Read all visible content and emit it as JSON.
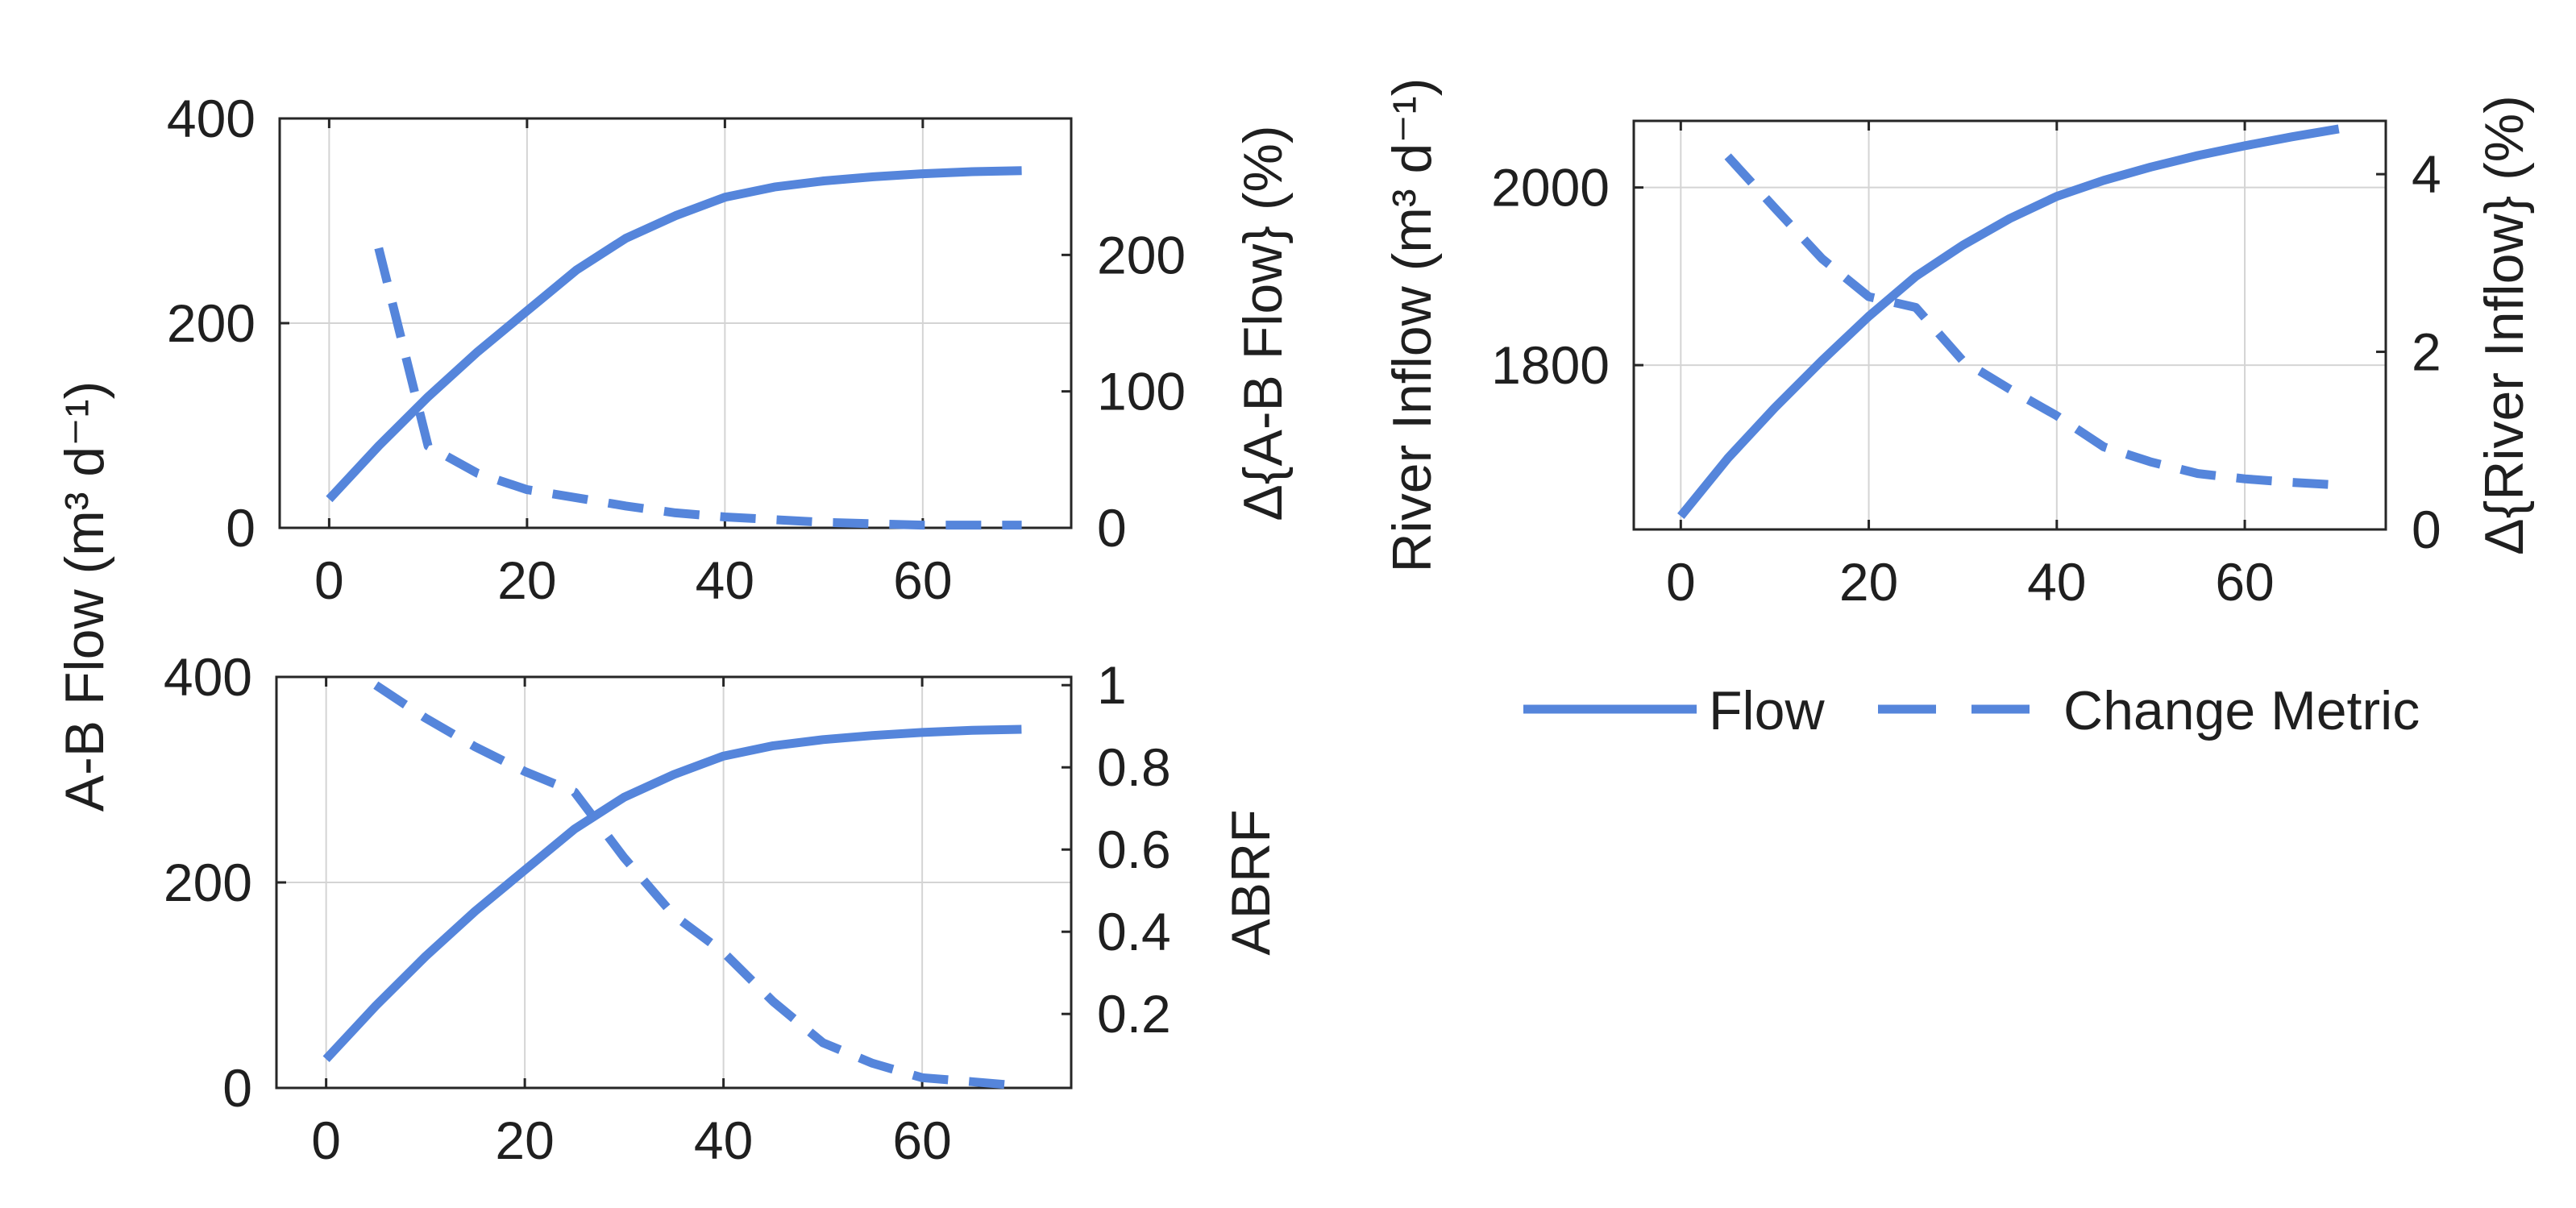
{
  "colors": {
    "series": "#5585db",
    "axis": "#262626",
    "grid": "#d4d4d4",
    "text": "#1f1f1f"
  },
  "legend": {
    "flow": "Flow",
    "change": "Change Metric"
  },
  "shared_ylabel": "A-B Flow (m³ d⁻¹)",
  "chart_data": [
    {
      "id": "ab",
      "type": "line",
      "title": "",
      "xlim": [
        -5,
        75
      ],
      "xticks": [
        0,
        20,
        40,
        60
      ],
      "ylabel": "A-B Flow (m³ d⁻¹)",
      "ylim": [
        0,
        400
      ],
      "yticks": [
        0,
        200,
        400
      ],
      "y2label": "Δ{A-B Flow} (%)",
      "y2lim": [
        0,
        300
      ],
      "y2ticks": [
        0,
        100,
        200
      ],
      "series": [
        {
          "name": "Flow",
          "axis": "left",
          "style": "solid",
          "x": [
            0,
            5,
            10,
            15,
            20,
            25,
            30,
            35,
            40,
            45,
            50,
            55,
            60,
            65,
            70
          ],
          "y": [
            28,
            80,
            128,
            172,
            212,
            252,
            283,
            305,
            323,
            333,
            339,
            343,
            346,
            348,
            349
          ]
        },
        {
          "name": "Change Metric",
          "axis": "right",
          "style": "dashed",
          "x": [
            5,
            10,
            15,
            20,
            25,
            30,
            35,
            40,
            45,
            50,
            55,
            60,
            65,
            70
          ],
          "y": [
            205,
            60,
            40,
            28,
            22,
            16,
            11,
            8,
            6,
            4,
            3,
            2,
            2,
            2
          ]
        }
      ]
    },
    {
      "id": "river",
      "type": "line",
      "title": "",
      "xlim": [
        -5,
        75
      ],
      "xticks": [
        0,
        20,
        40,
        60
      ],
      "ylabel": "River Inflow (m³ d⁻¹)",
      "ylim": [
        1615,
        2075
      ],
      "yticks": [
        1800,
        2000
      ],
      "y2label": "Δ{River Inflow} (%)",
      "y2lim": [
        0,
        4.6
      ],
      "y2ticks": [
        0,
        2,
        4
      ],
      "series": [
        {
          "name": "Flow",
          "axis": "left",
          "style": "solid",
          "x": [
            0,
            5,
            10,
            15,
            20,
            25,
            30,
            35,
            40,
            45,
            50,
            55,
            60,
            65,
            70
          ],
          "y": [
            1630,
            1695,
            1752,
            1805,
            1855,
            1900,
            1935,
            1965,
            1990,
            2008,
            2023,
            2036,
            2047,
            2057,
            2066
          ]
        },
        {
          "name": "Change Metric",
          "axis": "right",
          "style": "dashed",
          "x": [
            5,
            10,
            15,
            20,
            25,
            30,
            35,
            40,
            45,
            50,
            55,
            60,
            65,
            70
          ],
          "y": [
            4.2,
            3.62,
            3.05,
            2.62,
            2.5,
            1.9,
            1.58,
            1.28,
            0.93,
            0.76,
            0.63,
            0.57,
            0.53,
            0.5
          ]
        }
      ]
    },
    {
      "id": "abrf",
      "type": "line",
      "title": "",
      "xlim": [
        -5,
        75
      ],
      "xticks": [
        0,
        20,
        40,
        60
      ],
      "ylabel": "",
      "ylim": [
        0,
        400
      ],
      "yticks": [
        0,
        200,
        400
      ],
      "y2label": "ABRF",
      "y2lim": [
        0.02,
        1.02
      ],
      "y2ticks": [
        0.2,
        0.4,
        0.6,
        0.8,
        1
      ],
      "series": [
        {
          "name": "Flow",
          "axis": "left",
          "style": "solid",
          "x": [
            0,
            5,
            10,
            15,
            20,
            25,
            30,
            35,
            40,
            45,
            50,
            55,
            60,
            65,
            70
          ],
          "y": [
            28,
            80,
            128,
            172,
            212,
            252,
            283,
            305,
            323,
            333,
            339,
            343,
            346,
            348,
            349
          ]
        },
        {
          "name": "Change Metric",
          "axis": "right",
          "style": "dashed",
          "x": [
            5,
            10,
            15,
            20,
            25,
            30,
            35,
            40,
            45,
            50,
            55,
            60,
            65,
            70
          ],
          "y": [
            1.0,
            0.92,
            0.85,
            0.79,
            0.74,
            0.58,
            0.44,
            0.35,
            0.23,
            0.13,
            0.08,
            0.045,
            0.035,
            0.025
          ]
        }
      ]
    }
  ]
}
